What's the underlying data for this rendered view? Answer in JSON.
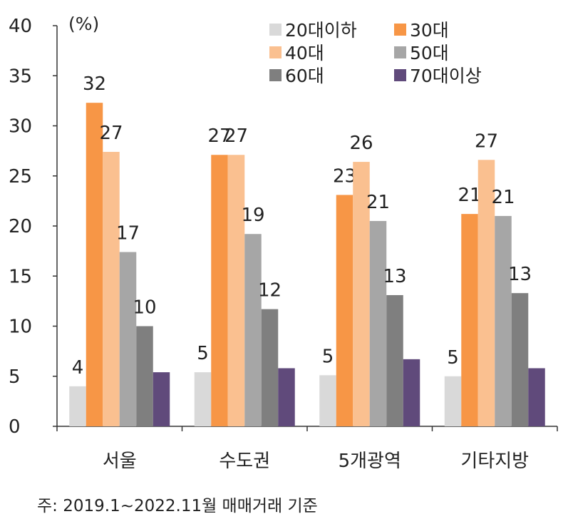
{
  "chart_data": {
    "type": "bar",
    "unit_label": "(%)",
    "categories": [
      "서울",
      "수도권",
      "5개광역",
      "기타지방"
    ],
    "ylim": [
      0,
      40
    ],
    "yticks": [
      0,
      5,
      10,
      15,
      20,
      25,
      30,
      35,
      40
    ],
    "grid": false,
    "legend_position": "top-right",
    "series": [
      {
        "name": "20대이하",
        "color": "#d9d9d9",
        "values": [
          4.0,
          5.4,
          5.1,
          5.0
        ],
        "labels": [
          "4",
          "5",
          "5",
          "5"
        ]
      },
      {
        "name": "30대",
        "color": "#f79646",
        "values": [
          32.3,
          27.1,
          23.1,
          21.2
        ],
        "labels": [
          "32",
          "27",
          "23",
          "21"
        ]
      },
      {
        "name": "40대",
        "color": "#fac090",
        "values": [
          27.4,
          27.1,
          26.4,
          26.6
        ],
        "labels": [
          "27",
          "27",
          "26",
          "27"
        ]
      },
      {
        "name": "50대",
        "color": "#a6a6a6",
        "values": [
          17.4,
          19.2,
          20.5,
          21.0
        ],
        "labels": [
          "17",
          "19",
          "21",
          "21"
        ]
      },
      {
        "name": "60대",
        "color": "#7f7f7f",
        "values": [
          10.0,
          11.7,
          13.1,
          13.3
        ],
        "labels": [
          "10",
          "12",
          "13",
          "13"
        ]
      },
      {
        "name": "70대이상",
        "color": "#604a7b",
        "values": [
          5.4,
          5.8,
          6.7,
          5.8
        ],
        "labels": [
          "",
          "",
          "",
          ""
        ]
      }
    ]
  },
  "footnote": "주: 2019.1~2022.11월 매매거래 기준"
}
